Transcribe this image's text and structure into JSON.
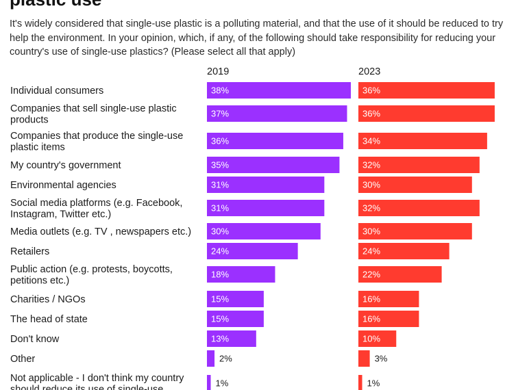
{
  "header": {
    "title": "plastic use",
    "subtitle": "It's widely considered that single-use plastic is a polluting material, and that the use of it should be reduced to try help the environment. In your opinion, which, if any, of the following should take responsibility for reducing your country's use of single-use plastics? (Please select all that apply)"
  },
  "chart_data": {
    "type": "bar",
    "orientation": "horizontal",
    "value_format": "percent",
    "categories": [
      [
        "Individual consumers"
      ],
      [
        "Companies that sell single-use plastic",
        "products"
      ],
      [
        "Companies that produce the single-use",
        "plastic items"
      ],
      [
        "My country's government"
      ],
      [
        "Environmental agencies"
      ],
      [
        "Social media platforms (e.g. Facebook,",
        "Instagram, Twitter etc.)"
      ],
      [
        "Media outlets (e.g. TV , newspapers etc.)"
      ],
      [
        "Retailers"
      ],
      [
        "Public action (e.g. protests, boycotts,",
        "petitions etc.)"
      ],
      [
        "Charities / NGOs"
      ],
      [
        "The head of state"
      ],
      [
        "Don't know"
      ],
      [
        "Other"
      ],
      [
        "Not applicable - I don't think my country",
        "should reduce its use of single-use"
      ]
    ],
    "series": [
      {
        "name": "2019",
        "color": "#9b30ff",
        "values": [
          38,
          37,
          36,
          35,
          31,
          31,
          30,
          24,
          18,
          15,
          15,
          13,
          2,
          1
        ]
      },
      {
        "name": "2023",
        "color": "#ff3b2f",
        "values": [
          36,
          36,
          34,
          32,
          30,
          32,
          30,
          24,
          22,
          16,
          16,
          10,
          3,
          1
        ]
      }
    ],
    "xlim": [
      0,
      38
    ]
  }
}
